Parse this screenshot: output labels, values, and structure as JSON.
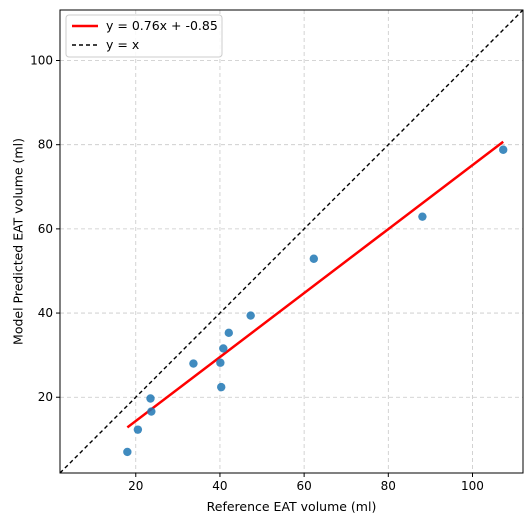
{
  "chart_data": {
    "type": "scatter",
    "xlabel": "Reference EAT volume (ml)",
    "ylabel": "Model Predicted EAT volume (ml)",
    "xlim": [
      2,
      112
    ],
    "ylim": [
      2,
      112
    ],
    "xticks": [
      20,
      40,
      60,
      80,
      100
    ],
    "yticks": [
      20,
      40,
      60,
      80,
      100
    ],
    "grid": true,
    "legend_position": "top-left",
    "points": [
      {
        "x": 18.0,
        "y": 7.0
      },
      {
        "x": 20.5,
        "y": 12.3
      },
      {
        "x": 23.5,
        "y": 19.7
      },
      {
        "x": 23.7,
        "y": 16.6
      },
      {
        "x": 33.7,
        "y": 28.0
      },
      {
        "x": 40.1,
        "y": 28.2
      },
      {
        "x": 40.3,
        "y": 22.4
      },
      {
        "x": 40.8,
        "y": 31.6
      },
      {
        "x": 42.1,
        "y": 35.3
      },
      {
        "x": 47.3,
        "y": 39.4
      },
      {
        "x": 62.3,
        "y": 52.9
      },
      {
        "x": 88.1,
        "y": 62.9
      },
      {
        "x": 107.3,
        "y": 78.8
      }
    ],
    "fit_line": {
      "label": "y = 0.76x + -0.85",
      "slope": 0.76,
      "intercept": -0.85,
      "x_range": [
        18.0,
        107.3
      ],
      "color": "#ff0000"
    },
    "identity_line": {
      "label": "y = x",
      "color": "#000000"
    },
    "point_color": "#1f77b4"
  }
}
